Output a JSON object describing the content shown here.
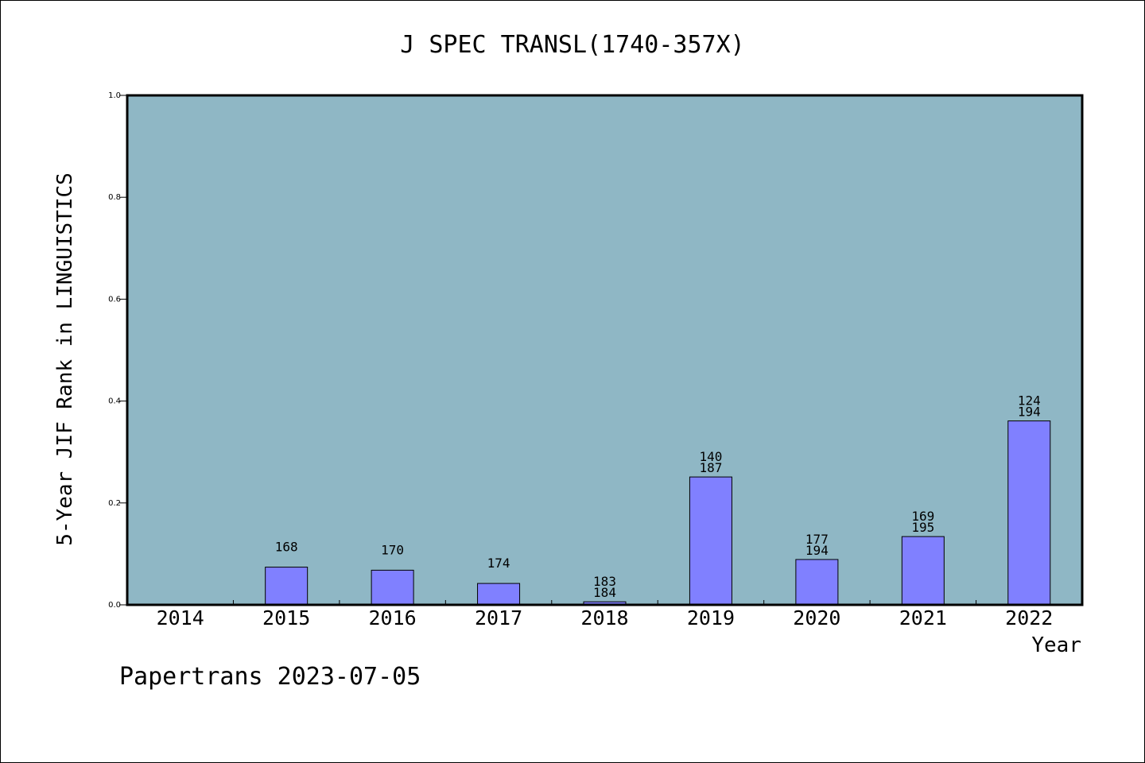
{
  "chart_data": {
    "type": "bar",
    "title": "J SPEC TRANSL(1740-357X)",
    "xlabel": "Year",
    "ylabel": "5-Year JIF Rank in LINGUISTICS",
    "ylim": [
      0,
      1.0
    ],
    "yticks": [
      "0.0",
      "0.2",
      "0.4",
      "0.6",
      "0.8",
      "1.0"
    ],
    "categories": [
      "2014",
      "2015",
      "2016",
      "2017",
      "2018",
      "2019",
      "2020",
      "2021",
      "2022"
    ],
    "values": [
      null,
      0.074,
      0.068,
      0.042,
      0.006,
      0.251,
      0.089,
      0.134,
      0.361
    ],
    "labels": [
      [],
      [
        "168"
      ],
      [
        "170"
      ],
      [
        "174"
      ],
      [
        "183",
        "184"
      ],
      [
        "140",
        "187"
      ],
      [
        "177",
        "194"
      ],
      [
        "169",
        "195"
      ],
      [
        "124",
        "194"
      ]
    ],
    "plot_background": "#8fb7c5",
    "bar_color": "#8080ff",
    "grid": false,
    "legend": "none"
  },
  "footer": "Papertrans 2023-07-05"
}
